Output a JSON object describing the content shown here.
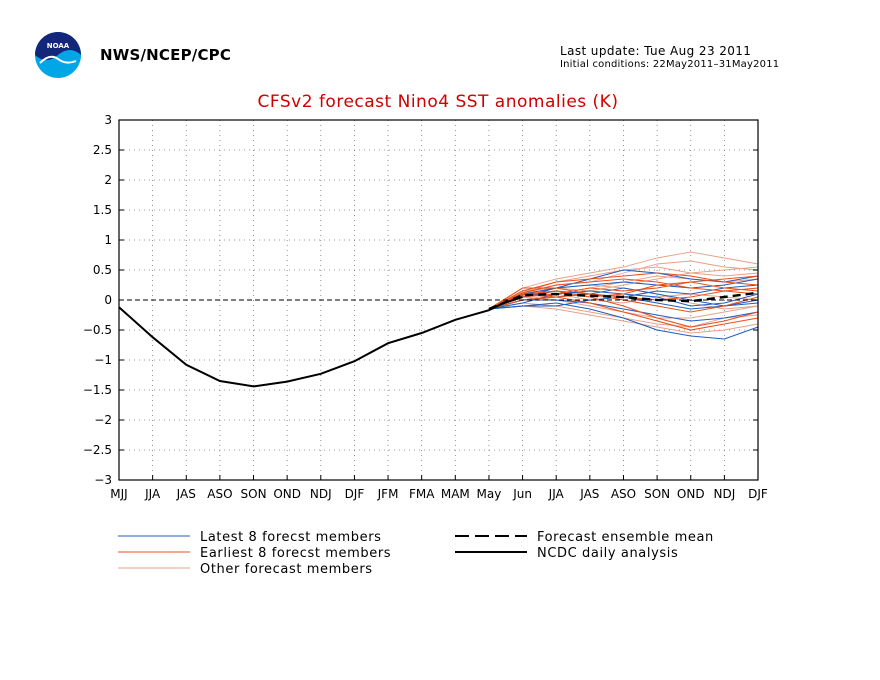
{
  "header": {
    "agency": "NWS/NCEP/CPC",
    "last_update": "Last update: Tue Aug 23 2011",
    "initial_conditions": "Initial conditions: 22May2011–31May2011",
    "logo_text": "NOAA"
  },
  "colors": {
    "title": "#d00000",
    "latest": "#1f5fbf",
    "earliest": "#e8501c",
    "other": "#e8a088",
    "analysis": "#000000"
  },
  "chart_data": {
    "type": "line",
    "title": "CFSv2 forecast Nino4 SST anomalies (K)",
    "xlabel": "",
    "ylabel": "",
    "categories": [
      "MJJ",
      "JJA",
      "JAS",
      "ASO",
      "SON",
      "OND",
      "NDJ",
      "DJF",
      "JFM",
      "FMA",
      "MAM",
      "May",
      "Jun",
      "JJA",
      "JAS",
      "ASO",
      "SON",
      "OND",
      "NDJ",
      "DJF"
    ],
    "yticks": [
      "3",
      "2.5",
      "2",
      "1.5",
      "1",
      "0.5",
      "0",
      "−0.5",
      "−1",
      "−1.5",
      "−2",
      "−2.5",
      "−3"
    ],
    "ylim": [
      -3,
      3
    ],
    "grid": true,
    "zero_line": "dashed",
    "analysis": {
      "name": "NCDC daily analysis",
      "x": [
        0,
        1,
        2,
        3,
        4,
        5,
        6,
        7,
        8,
        9,
        10,
        11,
        11.4,
        12
      ],
      "values": [
        -0.12,
        -0.62,
        -1.08,
        -1.35,
        -1.44,
        -1.36,
        -1.23,
        -1.02,
        -0.72,
        -0.55,
        -0.33,
        -0.17,
        -0.06,
        0.05
      ]
    },
    "ensemble_mean": {
      "name": "Forecast ensemble mean",
      "x": [
        11,
        12,
        13,
        14,
        15,
        16,
        17,
        18,
        19
      ],
      "values": [
        -0.15,
        0.08,
        0.1,
        0.07,
        0.05,
        0.0,
        -0.02,
        0.05,
        0.12
      ]
    },
    "members": [
      {
        "group": "latest",
        "x": [
          11,
          12,
          13,
          14,
          15,
          16,
          17,
          18,
          19
        ],
        "values": [
          -0.15,
          -0.1,
          -0.05,
          -0.15,
          -0.3,
          -0.5,
          -0.6,
          -0.65,
          -0.45
        ]
      },
      {
        "group": "latest",
        "x": [
          11,
          12,
          13,
          14,
          15,
          16,
          17,
          18,
          19
        ],
        "values": [
          -0.15,
          0.05,
          0.2,
          0.35,
          0.5,
          0.45,
          0.35,
          0.3,
          0.4
        ]
      },
      {
        "group": "latest",
        "x": [
          11,
          12,
          13,
          14,
          15,
          16,
          17,
          18,
          19
        ],
        "values": [
          -0.15,
          -0.05,
          0.1,
          0.15,
          0.1,
          0.05,
          -0.1,
          -0.05,
          0.1
        ]
      },
      {
        "group": "latest",
        "x": [
          11,
          12,
          13,
          14,
          15,
          16,
          17,
          18,
          19
        ],
        "values": [
          -0.15,
          0.0,
          0.0,
          -0.05,
          -0.15,
          -0.25,
          -0.35,
          -0.3,
          -0.2
        ]
      },
      {
        "group": "latest",
        "x": [
          11,
          12,
          13,
          14,
          15,
          16,
          17,
          18,
          19
        ],
        "values": [
          -0.15,
          0.1,
          0.2,
          0.25,
          0.3,
          0.25,
          0.2,
          0.25,
          0.35
        ]
      },
      {
        "group": "latest",
        "x": [
          11,
          12,
          13,
          14,
          15,
          16,
          17,
          18,
          19
        ],
        "values": [
          -0.15,
          -0.1,
          -0.1,
          0.0,
          0.05,
          -0.05,
          -0.15,
          -0.1,
          0.0
        ]
      },
      {
        "group": "latest",
        "x": [
          11,
          12,
          13,
          14,
          15,
          16,
          17,
          18,
          19
        ],
        "values": [
          -0.15,
          0.05,
          0.15,
          0.1,
          0.05,
          0.15,
          0.1,
          0.2,
          0.25
        ]
      },
      {
        "group": "latest",
        "x": [
          11,
          12,
          13,
          14,
          15,
          16,
          17,
          18,
          19
        ],
        "values": [
          -0.15,
          0.0,
          0.05,
          0.1,
          0.2,
          0.1,
          0.0,
          -0.1,
          -0.05
        ]
      },
      {
        "group": "earliest",
        "x": [
          11,
          12,
          13,
          14,
          15,
          16,
          17,
          18,
          19
        ],
        "values": [
          -0.15,
          0.15,
          0.3,
          0.35,
          0.4,
          0.45,
          0.4,
          0.3,
          0.25
        ]
      },
      {
        "group": "earliest",
        "x": [
          11,
          12,
          13,
          14,
          15,
          16,
          17,
          18,
          19
        ],
        "values": [
          -0.15,
          0.1,
          0.15,
          0.05,
          -0.1,
          -0.3,
          -0.45,
          -0.35,
          -0.2
        ]
      },
      {
        "group": "earliest",
        "x": [
          11,
          12,
          13,
          14,
          15,
          16,
          17,
          18,
          19
        ],
        "values": [
          -0.15,
          0.05,
          0.1,
          0.2,
          0.15,
          0.2,
          0.3,
          0.35,
          0.4
        ]
      },
      {
        "group": "earliest",
        "x": [
          11,
          12,
          13,
          14,
          15,
          16,
          17,
          18,
          19
        ],
        "values": [
          -0.15,
          0.2,
          0.2,
          0.1,
          0.0,
          -0.1,
          -0.2,
          -0.1,
          0.05
        ]
      },
      {
        "group": "earliest",
        "x": [
          11,
          12,
          13,
          14,
          15,
          16,
          17,
          18,
          19
        ],
        "values": [
          -0.15,
          0.1,
          0.05,
          -0.05,
          -0.2,
          -0.35,
          -0.5,
          -0.4,
          -0.3
        ]
      },
      {
        "group": "earliest",
        "x": [
          11,
          12,
          13,
          14,
          15,
          16,
          17,
          18,
          19
        ],
        "values": [
          -0.15,
          0.12,
          0.25,
          0.3,
          0.35,
          0.3,
          0.2,
          0.15,
          0.2
        ]
      },
      {
        "group": "earliest",
        "x": [
          11,
          12,
          13,
          14,
          15,
          16,
          17,
          18,
          19
        ],
        "values": [
          -0.15,
          0.0,
          0.05,
          0.1,
          0.05,
          0.0,
          0.05,
          0.15,
          0.1
        ]
      },
      {
        "group": "earliest",
        "x": [
          11,
          12,
          13,
          14,
          15,
          16,
          17,
          18,
          19
        ],
        "values": [
          -0.15,
          0.08,
          0.15,
          0.05,
          0.1,
          0.25,
          0.3,
          0.2,
          0.15
        ]
      },
      {
        "group": "other",
        "x": [
          11,
          12,
          13,
          14,
          15,
          16,
          17,
          18,
          19
        ],
        "values": [
          -0.15,
          0.2,
          0.35,
          0.45,
          0.55,
          0.7,
          0.8,
          0.7,
          0.6
        ]
      },
      {
        "group": "other",
        "x": [
          11,
          12,
          13,
          14,
          15,
          16,
          17,
          18,
          19
        ],
        "values": [
          -0.15,
          0.1,
          0.25,
          0.3,
          0.45,
          0.6,
          0.65,
          0.55,
          0.5
        ]
      },
      {
        "group": "other",
        "x": [
          11,
          12,
          13,
          14,
          15,
          16,
          17,
          18,
          19
        ],
        "values": [
          -0.15,
          -0.1,
          -0.15,
          -0.25,
          -0.35,
          -0.45,
          -0.55,
          -0.5,
          -0.4
        ]
      },
      {
        "group": "other",
        "x": [
          11,
          12,
          13,
          14,
          15,
          16,
          17,
          18,
          19
        ],
        "values": [
          -0.15,
          0.05,
          0.0,
          -0.1,
          -0.2,
          -0.3,
          -0.3,
          -0.2,
          -0.1
        ]
      },
      {
        "group": "other",
        "x": [
          11,
          12,
          13,
          14,
          15,
          16,
          17,
          18,
          19
        ],
        "values": [
          -0.15,
          0.15,
          0.2,
          0.15,
          0.25,
          0.35,
          0.45,
          0.5,
          0.55
        ]
      },
      {
        "group": "other",
        "x": [
          11,
          12,
          13,
          14,
          15,
          16,
          17,
          18,
          19
        ],
        "values": [
          -0.15,
          0.0,
          0.1,
          0.2,
          0.3,
          0.4,
          0.35,
          0.3,
          0.35
        ]
      },
      {
        "group": "other",
        "x": [
          11,
          12,
          13,
          14,
          15,
          16,
          17,
          18,
          19
        ],
        "values": [
          -0.15,
          -0.05,
          -0.1,
          -0.2,
          -0.3,
          -0.4,
          -0.45,
          -0.3,
          -0.25
        ]
      },
      {
        "group": "other",
        "x": [
          11,
          12,
          13,
          14,
          15,
          16,
          17,
          18,
          19
        ],
        "values": [
          -0.15,
          0.1,
          0.1,
          0.0,
          -0.05,
          0.05,
          0.1,
          0.05,
          0.0
        ]
      },
      {
        "group": "other",
        "x": [
          11,
          12,
          13,
          14,
          15,
          16,
          17,
          18,
          19
        ],
        "values": [
          -0.15,
          0.05,
          0.2,
          0.25,
          0.2,
          0.1,
          -0.05,
          -0.15,
          -0.1
        ]
      },
      {
        "group": "other",
        "x": [
          11,
          12,
          13,
          14,
          15,
          16,
          17,
          18,
          19
        ],
        "values": [
          -0.15,
          0.12,
          0.3,
          0.4,
          0.5,
          0.55,
          0.45,
          0.4,
          0.45
        ]
      }
    ],
    "legend": {
      "placement": "bottom",
      "items": [
        {
          "key": "latest",
          "label": "Latest 8 forecst members"
        },
        {
          "key": "earliest",
          "label": "Earliest 8 forecst members"
        },
        {
          "key": "other",
          "label": "Other forecast members"
        },
        {
          "key": "mean",
          "label": "Forecast ensemble mean"
        },
        {
          "key": "analysis",
          "label": "NCDC daily analysis"
        }
      ]
    }
  }
}
